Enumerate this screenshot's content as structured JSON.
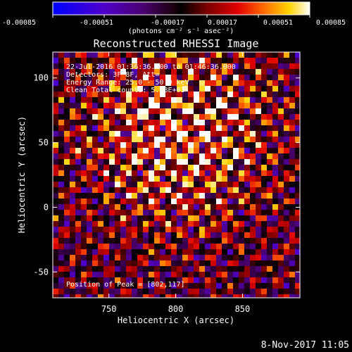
{
  "chart_data": {
    "type": "heatmap",
    "title": "Reconstructed RHESSI Image",
    "xlabel": "Heliocentric X (arcsec)",
    "ylabel": "Heliocentric Y (arcsec)",
    "xlim": [
      708,
      893
    ],
    "ylim": [
      -70,
      120
    ],
    "x_ticks": [
      750,
      800,
      850
    ],
    "y_ticks": [
      -50,
      0,
      50,
      100
    ],
    "annotations": [
      "22-Jul-2016 01:36:36.000 to 01:46:36.000",
      "Detectors: 3F 8F, Att=",
      "Energy Range: 25.0 - 50.0 keV",
      "Clean     Total counts: 5.78E+03"
    ],
    "peak_label": "Position of Peak = [802,117]",
    "peak": {
      "x": 802,
      "y": 117
    },
    "colorbar": {
      "ticks": [
        "-0.00085",
        "-0.00051",
        "-0.00017",
        "0.00017",
        "0.00051",
        "0.00085"
      ],
      "min": -0.00085,
      "max": 0.00085,
      "unit_label": "(photons cm⁻² s⁻¹ asec⁻²)"
    },
    "grid": false
  },
  "timestamp": "8-Nov-2017 11:05",
  "colors": {
    "background": "#000000",
    "text": "#ffffff"
  }
}
